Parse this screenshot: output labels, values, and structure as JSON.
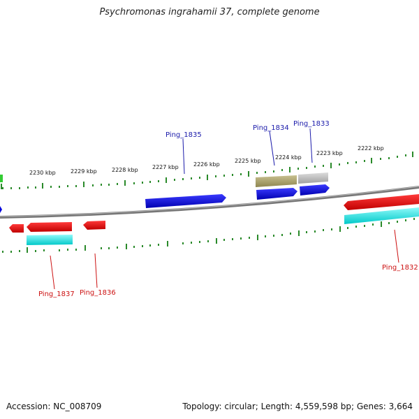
{
  "title": "Psychromonas ingrahamii 37, complete genome",
  "accession": "Accession: NC_008709",
  "summary": "Topology: circular; Length: 4,559,598 bp; Genes: 3,664",
  "ticks": [
    "2230 kbp",
    "2229 kbp",
    "2228 kbp",
    "2227 kbp",
    "2226 kbp",
    "2225 kbp",
    "2224 kbp",
    "2223 kbp",
    "2222 kbp"
  ],
  "gene_labels": {
    "ping_1835": "Ping_1835",
    "ping_1834": "Ping_1834",
    "ping_1833": "Ping_1833",
    "ping_1837": "Ping_1837",
    "ping_1836": "Ping_1836",
    "ping_1832": "Ping_1832"
  },
  "colors": {
    "forward_gene": "#0000dd",
    "reverse_gene": "#ee0000",
    "cds_forward_olive": "#a8a060",
    "cds_forward_gray": "#b8b8b8",
    "cds_reverse_cyan": "#00e0e0",
    "tick": "#2a8a2a",
    "backbone": "#777777",
    "forward_label": "#1a1aaa",
    "reverse_label": "#cc1111"
  }
}
